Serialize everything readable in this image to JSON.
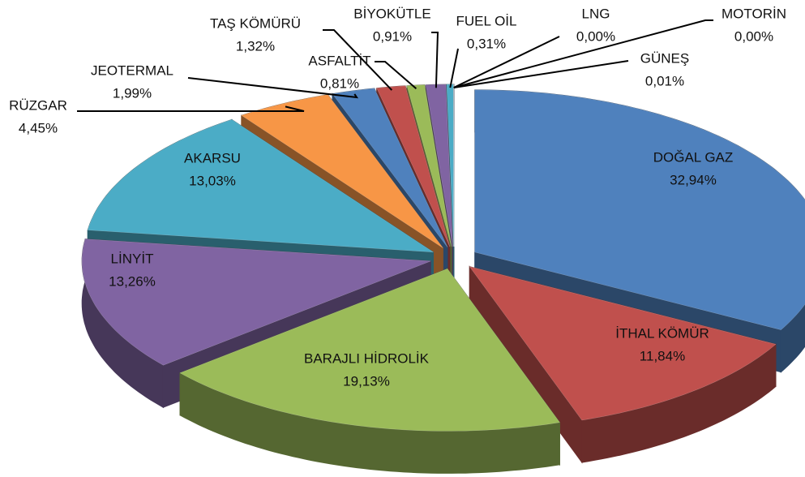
{
  "chart_data": {
    "type": "pie",
    "categories": [
      "DOĞAL GAZ",
      "İTHAL KÖMÜR",
      "BARAJLI HİDROLİK",
      "LİNYİT",
      "AKARSU",
      "RÜZGAR",
      "JEOTERMAL",
      "TAŞ KÖMÜRÜ",
      "ASFALTİT",
      "BİYOKÜTLE",
      "FUEL OİL",
      "LNG",
      "MOTORİN",
      "GÜNEŞ"
    ],
    "values": [
      32.94,
      11.84,
      19.13,
      13.26,
      13.03,
      4.45,
      1.99,
      1.32,
      0.81,
      0.91,
      0.31,
      0.0,
      0.0,
      0.01
    ],
    "value_labels": [
      "32,94%",
      "11,84%",
      "19,13%",
      "13,26%",
      "13,03%",
      "4,45%",
      "1,99%",
      "1,32%",
      "0,81%",
      "0,91%",
      "0,31%",
      "0,00%",
      "0,00%",
      "0,01%"
    ],
    "colors": [
      "#4f81bd",
      "#c0504d",
      "#9bbb59",
      "#8064a2",
      "#4bacc6",
      "#f79646",
      "#4f81bd",
      "#c0504d",
      "#9bbb59",
      "#8064a2",
      "#4bacc6",
      "#f79646",
      "#4f81bd",
      "#c0504d"
    ]
  }
}
